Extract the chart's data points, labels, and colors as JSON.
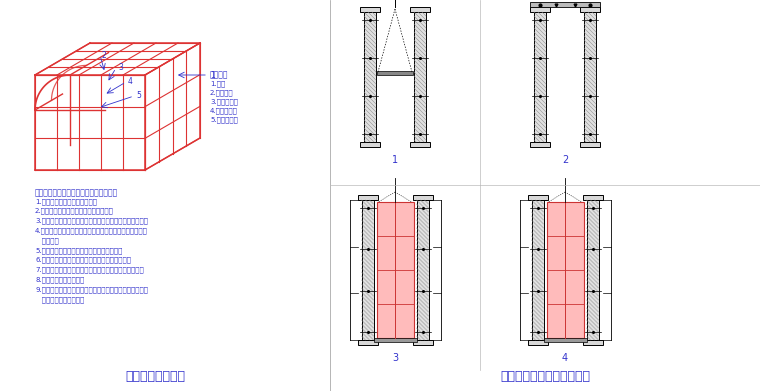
{
  "title_left": "电梯井筒模示意图",
  "title_right": "电梯井移动操作平台示意图",
  "bg_color": "#ffffff",
  "blue": "#3333cc",
  "red": "#cc3333",
  "black": "#000000",
  "gray_fill": "#c8c8c8",
  "hatch_color": "#888888",
  "red_fill": "#ffbbbb",
  "legend_title": "图示说明",
  "legend_items": [
    "1.面板",
    "2.三角铁规",
    "3.方钢龙骨管",
    "4.方钢龙骨管",
    "5.螺木底分模"
  ],
  "process_title": "电梯井操作平台及筒模配套使用工艺步骤",
  "process_steps": [
    "1.现场标注设置模玉孔开状态；",
    "2.收混筒模四角，剥脱模剂，准备吊装；",
    "3.通过预埋孔孔路泊是电梯井操作平台，调干高度及水平；",
    "4.钻孔墙体钢筋，支模板，插入穿墙螺栓，预留预埋孔，移入筒模；",
    "5.先开筒模四角，上紧穿墙螺栓，浇洗墙体；",
    "6.拆除墙部，收拿筒模四角，使筒模脱离砼墙体；",
    "7.角模吊离角筒，涂理筒模，剥脱模剂，准备再次吊装；",
    "8.起移电梯井操密平台；",
    "9.电梯井操作平台支撑自动弹入顶营孔，调节平台高度及水平，进入下一届施工。"
  ],
  "sub_labels": [
    "1",
    "2",
    "3",
    "4"
  ],
  "fig_width": 7.6,
  "fig_height": 3.91
}
